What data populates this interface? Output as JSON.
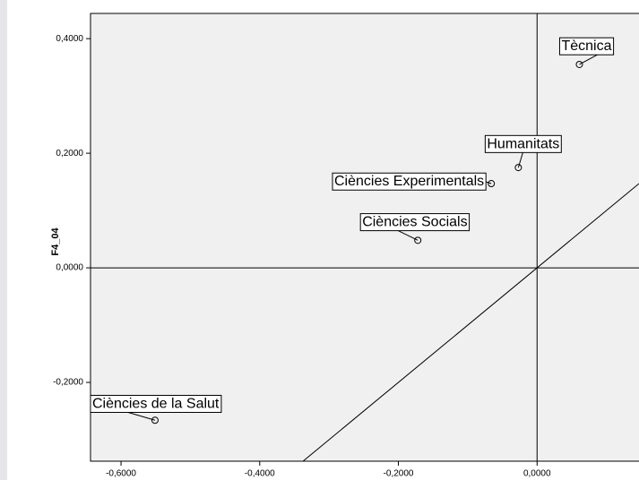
{
  "chart_data": {
    "type": "scatter",
    "y_label": "F4_04",
    "points": [
      {
        "label": "Tècnica",
        "x": 0.061,
        "y": 0.355
      },
      {
        "label": "Humanitats",
        "x": -0.027,
        "y": 0.175
      },
      {
        "label": "Ciències Experimentals",
        "x": -0.066,
        "y": 0.147
      },
      {
        "label": "Ciències Socials",
        "x": -0.172,
        "y": 0.048
      },
      {
        "label": "Ciències de la Salut",
        "x": -0.551,
        "y": -0.266
      }
    ],
    "xlim": [
      -0.644,
      0.147
    ],
    "ylim": [
      -0.3375,
      0.444
    ],
    "xticks": [
      {
        "value": -0.6,
        "label": "-0,6000"
      },
      {
        "value": -0.4,
        "label": "-0,4000"
      },
      {
        "value": -0.2,
        "label": "-0,2000"
      },
      {
        "value": 0,
        "label": "0,0000"
      }
    ],
    "yticks": [
      {
        "value": -0.2,
        "label": "-0,2000"
      },
      {
        "value": 0,
        "label": "0,0000"
      },
      {
        "value": 0.2,
        "label": "0,2000"
      },
      {
        "value": 0.4,
        "label": "0,4000"
      }
    ],
    "grid": false
  }
}
